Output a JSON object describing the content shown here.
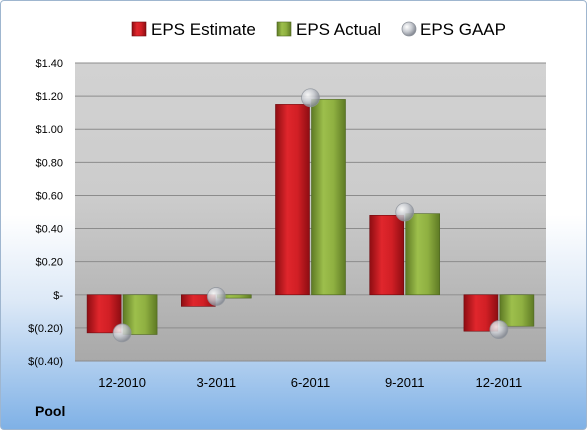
{
  "company": "Pool",
  "chart_data": {
    "type": "bar",
    "categories": [
      "12-2010",
      "3-2011",
      "6-2011",
      "9-2011",
      "12-2011"
    ],
    "series": [
      {
        "name": "EPS Estimate",
        "kind": "bar",
        "color": "#c8181e",
        "values": [
          -0.23,
          -0.07,
          1.15,
          0.48,
          -0.22
        ]
      },
      {
        "name": "EPS Actual",
        "kind": "bar",
        "color": "#8aab3c",
        "values": [
          -0.24,
          -0.02,
          1.18,
          0.49,
          -0.19
        ]
      },
      {
        "name": "EPS GAAP",
        "kind": "marker",
        "color": "#b8bcc4",
        "values": [
          -0.23,
          -0.01,
          1.19,
          0.5,
          -0.21
        ]
      }
    ],
    "ylim": [
      -0.4,
      1.4
    ],
    "yticks": [
      {
        "value": 1.4,
        "label": "$1.40"
      },
      {
        "value": 1.2,
        "label": "$1.20"
      },
      {
        "value": 1.0,
        "label": "$1.00"
      },
      {
        "value": 0.8,
        "label": "$0.80"
      },
      {
        "value": 0.6,
        "label": "$0.60"
      },
      {
        "value": 0.4,
        "label": "$0.40"
      },
      {
        "value": 0.2,
        "label": "$0.20"
      },
      {
        "value": 0.0,
        "label": "$-"
      },
      {
        "value": -0.2,
        "label": "$(0.20)"
      },
      {
        "value": -0.4,
        "label": "$(0.40)"
      }
    ],
    "grid": true,
    "legend_position": "top"
  }
}
